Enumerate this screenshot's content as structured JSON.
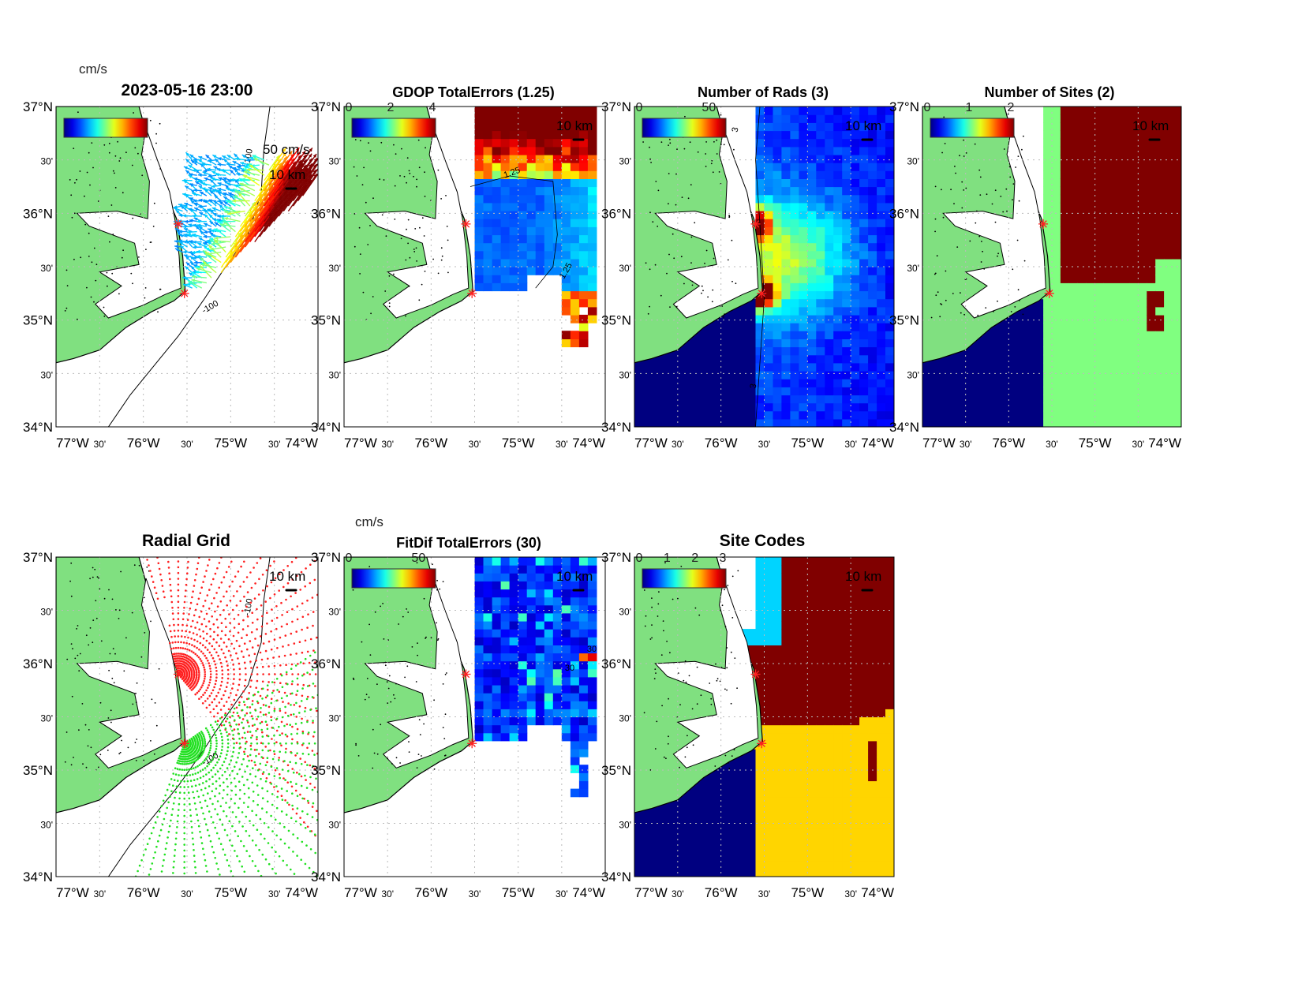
{
  "figure": {
    "colormap": "jet",
    "land_color": "#80e080",
    "site_marker_color": "#ff2020",
    "xlim": [
      -77,
      -74
    ],
    "ylim": [
      34,
      37
    ],
    "lat_tick_labels": [
      "37°N",
      "30'",
      "36°N",
      "30'",
      "35°N",
      "30'",
      "34°N"
    ],
    "lon_tick_labels": [
      "77°W",
      "30'",
      "76°W",
      "30'",
      "75°W",
      "30'",
      "74°W"
    ],
    "sites": [
      {
        "lon": -75.6,
        "lat": 35.9
      },
      {
        "lon": -75.53,
        "lat": 35.25
      }
    ]
  },
  "chart_data": [
    {
      "type": "quiver",
      "title": "2023-05-16 23:00",
      "colorbar": {
        "label": "cm/s",
        "ticks": [],
        "range": [
          0,
          120
        ]
      },
      "distance_label": "10 km",
      "velocity_scale_label": "50 cm/s",
      "contour_labels": [
        "-100",
        "-100"
      ]
    },
    {
      "type": "heatmap",
      "title": "GDOP TotalErrors (1.25)",
      "colorbar": {
        "ticks": [
          "0",
          "2",
          "4"
        ],
        "range": [
          0,
          4
        ]
      },
      "distance_label": "10 km",
      "contour_labels": [
        "1.25",
        "1.25"
      ]
    },
    {
      "type": "heatmap",
      "title": "Number of Rads (3)",
      "colorbar": {
        "ticks": [
          "0",
          "50"
        ],
        "range": [
          0,
          60
        ]
      },
      "distance_label": "10 km",
      "contour_labels": [
        "3",
        "3"
      ]
    },
    {
      "type": "heatmap",
      "title": "Number of Sites (2)",
      "colorbar": {
        "ticks": [
          "0",
          "1",
          "2"
        ],
        "range": [
          0,
          2
        ]
      },
      "distance_label": "10 km",
      "contour_labels": []
    },
    {
      "type": "scatter",
      "title": "Radial Grid",
      "colorbar": null,
      "distance_label": "10 km",
      "contour_labels": [
        "-100",
        "-100"
      ],
      "series_colors": [
        "#ff2020",
        "#20e020"
      ]
    },
    {
      "type": "heatmap",
      "title": "FitDif TotalErrors (30)",
      "colorbar": {
        "label": "cm/s",
        "ticks": [
          "0",
          "50"
        ],
        "range": [
          0,
          60
        ]
      },
      "distance_label": "10 km",
      "contour_labels": [
        "30",
        "30"
      ]
    },
    {
      "type": "heatmap",
      "title": "Site Codes",
      "colorbar": {
        "ticks": [
          "0",
          "1",
          "2",
          "3"
        ],
        "range": [
          0,
          3
        ]
      },
      "distance_label": "10 km",
      "contour_labels": []
    }
  ]
}
